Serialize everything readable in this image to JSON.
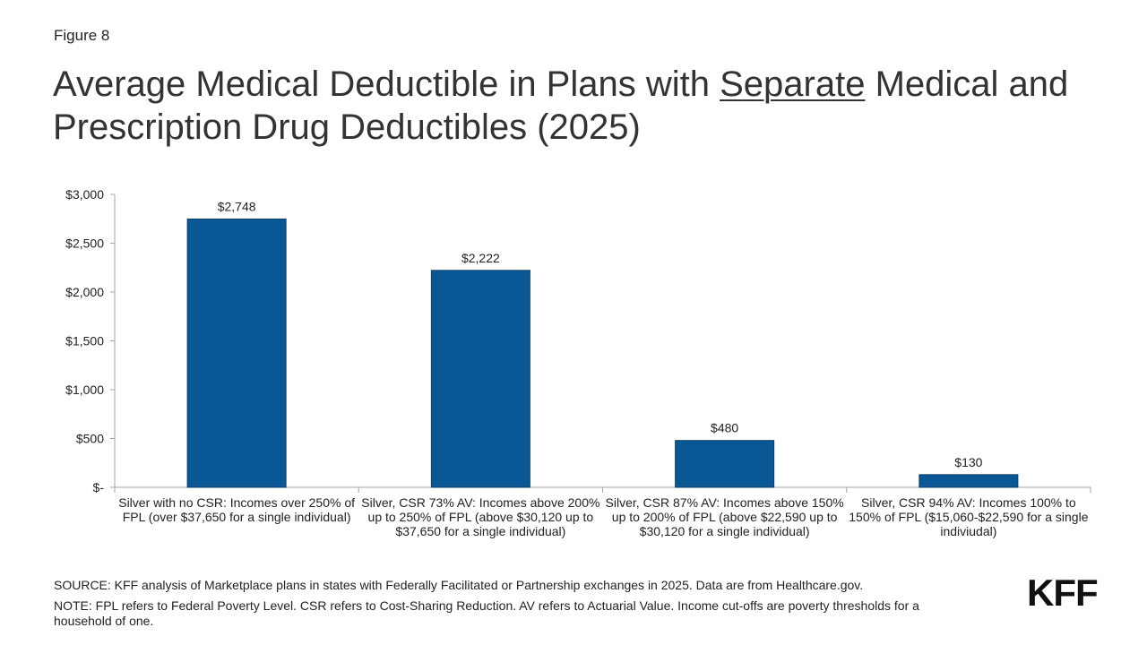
{
  "figure_label": "Figure 8",
  "title": {
    "before": "Average Medical Deductible in Plans with ",
    "underlined": "Separate",
    "after": " Medical and Prescription Drug Deductibles (2025)"
  },
  "chart_data": {
    "type": "bar",
    "categories": [
      "Silver with no CSR: Incomes over 250% of FPL (over $37,650 for a single individual)",
      "Silver, CSR 73% AV: Incomes above 200% up to 250% of FPL (above $30,120 up to $37,650 for a single individual)",
      "Silver, CSR 87% AV: Incomes above 150% up to 200% of FPL (above $22,590 up to $30,120 for a single individual)",
      "Silver, CSR 94% AV: Incomes 100% to 150% of FPL ($15,060-$22,590 for a single indiviudal)"
    ],
    "values": [
      2748,
      2222,
      480,
      130
    ],
    "data_labels": [
      "$2,748",
      "$2,222",
      "$480",
      "$130"
    ],
    "ylim": [
      0,
      3000
    ],
    "yticks": [
      0,
      500,
      1000,
      1500,
      2000,
      2500,
      3000
    ],
    "ytick_labels": [
      "$-",
      "$500",
      "$1,000",
      "$1,500",
      "$2,000",
      "$2,500",
      "$3,000"
    ],
    "bar_color": "#0a5796",
    "grid": false
  },
  "source": "SOURCE: KFF analysis of Marketplace plans in states with Federally Facilitated or Partnership exchanges in 2025. Data are from Healthcare.gov.",
  "note": "NOTE: FPL refers to Federal Poverty Level. CSR refers to Cost-Sharing Reduction. AV refers to Actuarial Value. Income cut-offs are poverty thresholds for a household of one.",
  "logo_text": "KFF"
}
